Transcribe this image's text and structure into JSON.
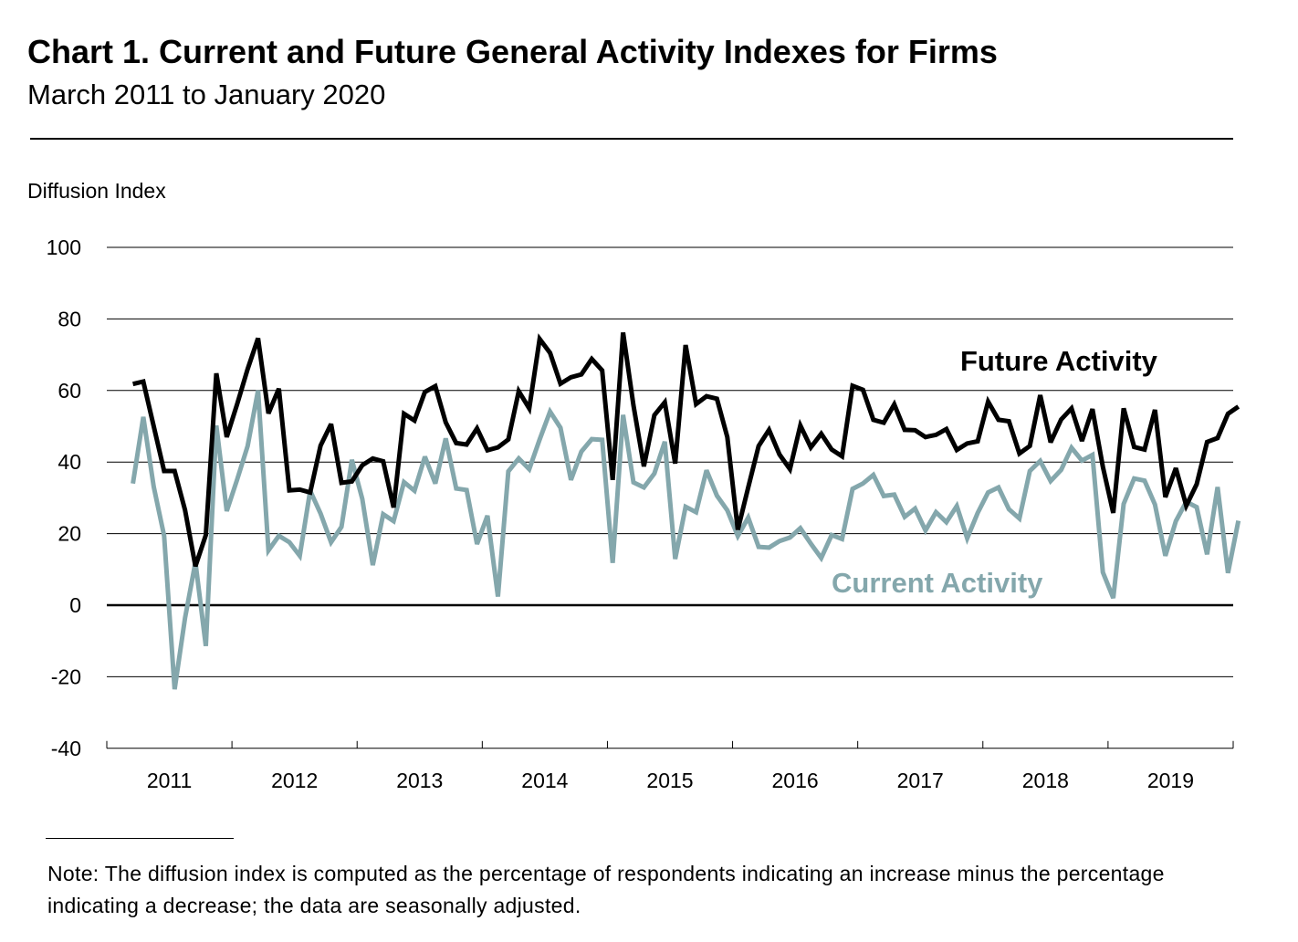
{
  "title": "Chart 1. Current and Future General Activity Indexes for Firms",
  "subtitle": "March 2011 to January 2020",
  "note": "Note:  The diffusion index is computed as the percentage of respondents indicating an increase minus the percentage indicating a decrease; the data are seasonally adjusted.",
  "colors": {
    "future": "#000000",
    "current": "#84a7ac",
    "grid": "#000000"
  },
  "chart_data": {
    "type": "line",
    "ylabel": "Diffusion Index",
    "ylim": [
      -40,
      100
    ],
    "yticks": [
      100,
      80,
      60,
      40,
      20,
      0,
      -20,
      -40
    ],
    "grid": true,
    "x_start": "2011-03",
    "x_end": "2020-01",
    "year_labels": [
      "2011",
      "2012",
      "2013",
      "2014",
      "2015",
      "2016",
      "2017",
      "2018",
      "2019"
    ],
    "series": [
      {
        "name": "Future Activity",
        "color": "#000000",
        "values": [
          61.8,
          62.5,
          50.0,
          37.5,
          37.5,
          26.6,
          10.9,
          19.6,
          64.8,
          47.0,
          56.2,
          66.0,
          74.6,
          53.6,
          60.5,
          32.1,
          32.3,
          31.5,
          44.6,
          50.6,
          34.2,
          34.6,
          39.1,
          41.0,
          40.2,
          27.3,
          53.5,
          51.6,
          59.6,
          61.2,
          51.1,
          45.3,
          44.9,
          49.4,
          43.3,
          44.1,
          46.3,
          59.8,
          55.0,
          74.4,
          70.5,
          61.9,
          63.7,
          64.5,
          68.8,
          65.6,
          35.0,
          76.2,
          55.8,
          38.8,
          53.1,
          56.7,
          39.6,
          72.7,
          56.2,
          58.4,
          57.7,
          47.0,
          21.1,
          32.9,
          44.5,
          49.0,
          42.1,
          38.0,
          50.2,
          44.1,
          47.9,
          43.5,
          41.6,
          61.3,
          60.2,
          51.8,
          51.0,
          56.1,
          49.0,
          48.9,
          47.0,
          47.6,
          49.2,
          43.4,
          45.2,
          45.8,
          56.9,
          51.8,
          51.4,
          42.4,
          44.5,
          58.7,
          45.5,
          51.9,
          55.0,
          45.9,
          54.8,
          38.7,
          25.8,
          55.0,
          44.2,
          43.5,
          54.6,
          30.2,
          38.3,
          27.8,
          33.8,
          45.6,
          46.7,
          53.5,
          55.5
        ]
      },
      {
        "name": "Current Activity",
        "color": "#84a7ac",
        "values": [
          34.0,
          52.6,
          33.1,
          19.4,
          -23.5,
          -3.6,
          12.0,
          -11.4,
          50.2,
          26.3,
          35.1,
          44.5,
          60.0,
          15.3,
          19.4,
          17.6,
          13.8,
          32.0,
          25.6,
          17.6,
          21.9,
          40.6,
          29.7,
          11.2,
          25.4,
          23.5,
          34.4,
          32.0,
          41.5,
          34.0,
          46.6,
          32.6,
          32.2,
          17.1,
          25.0,
          2.4,
          37.4,
          41.0,
          38.0,
          46.3,
          54.1,
          49.6,
          35.0,
          42.9,
          46.4,
          46.2,
          11.8,
          53.2,
          34.3,
          32.9,
          36.8,
          45.7,
          12.9,
          27.5,
          26.0,
          37.7,
          30.6,
          26.5,
          19.3,
          24.5,
          16.3,
          16.1,
          17.9,
          18.9,
          21.5,
          17.2,
          13.2,
          19.6,
          18.5,
          32.5,
          34.0,
          36.4,
          30.5,
          30.9,
          24.7,
          27.0,
          20.9,
          26.0,
          23.2,
          27.7,
          18.7,
          25.8,
          31.5,
          32.9,
          26.8,
          24.2,
          37.5,
          40.3,
          34.7,
          37.8,
          44.0,
          40.4,
          42.0,
          9.2,
          2.0,
          28.3,
          35.4,
          34.8,
          28.1,
          13.8,
          23.5,
          28.9,
          27.4,
          14.2,
          33.0,
          9.0,
          23.6
        ]
      }
    ],
    "annotations": [
      {
        "text": "Future Activity",
        "series": "Future Activity",
        "color": "#000000"
      },
      {
        "text": "Current Activity",
        "series": "Current Activity",
        "color": "#84a7ac"
      }
    ]
  }
}
